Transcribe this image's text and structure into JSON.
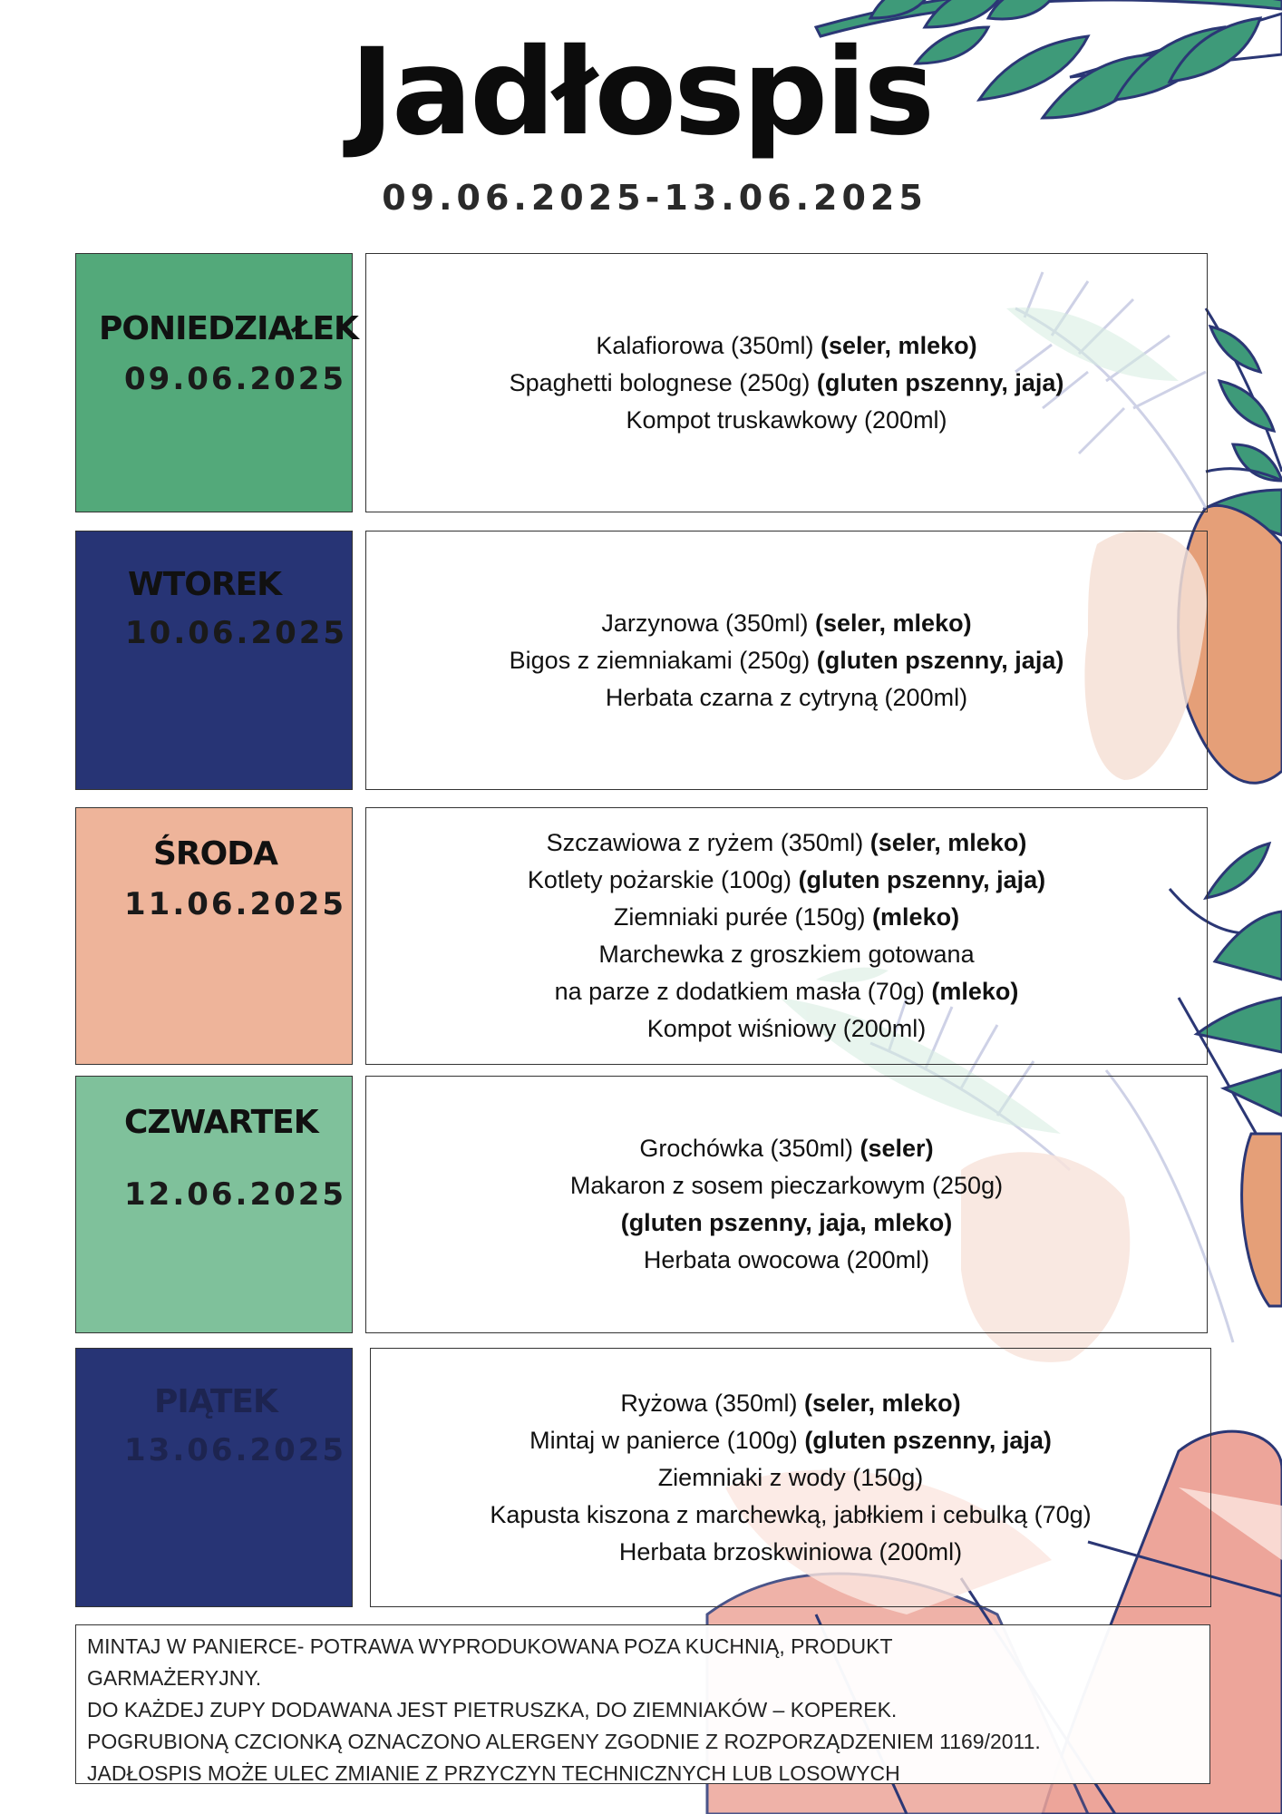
{
  "title": "Jadłospis",
  "date_range": "09.06.2025-13.06.2025",
  "colors": {
    "green": "#53a97a",
    "navy": "#273475",
    "peach": "#eeb49a",
    "light_green": "#7fc19b",
    "leaf_teal": "#3e9a79",
    "leaf_navy": "#2b3775",
    "leaf_orange": "#e59f78",
    "leaf_pink": "#eda59a"
  },
  "days": [
    {
      "name": "PONIEDZIAŁEK",
      "date": "09.06.2025",
      "menu": [
        {
          "text": "Kalafiorowa (350ml) ",
          "allergens": "(seler, mleko)"
        },
        {
          "text": "Spaghetti bolognese (250g) ",
          "allergens": "(gluten pszenny, jaja)"
        },
        {
          "text": "Kompot truskawkowy (200ml)",
          "allergens": ""
        }
      ]
    },
    {
      "name": "WTOREK",
      "date": "10.06.2025",
      "menu": [
        {
          "text": "Jarzynowa (350ml) ",
          "allergens": "(seler, mleko)"
        },
        {
          "text": "Bigos z ziemniakami (250g) ",
          "allergens": "(gluten pszenny, jaja)"
        },
        {
          "text": "Herbata czarna z cytryną (200ml)",
          "allergens": ""
        }
      ]
    },
    {
      "name": "ŚRODA",
      "date": "11.06.2025",
      "menu": [
        {
          "text": "Szczawiowa z ryżem (350ml) ",
          "allergens": "(seler, mleko)"
        },
        {
          "text": "Kotlety pożarskie (100g) ",
          "allergens": "(gluten pszenny, jaja)"
        },
        {
          "text": "Ziemniaki purée (150g) ",
          "allergens": "(mleko)"
        },
        {
          "text": "Marchewka z groszkiem gotowana",
          "allergens": ""
        },
        {
          "text": "na parze z dodatkiem masła (70g) ",
          "allergens": "(mleko)"
        },
        {
          "text": "Kompot wiśniowy (200ml)",
          "allergens": ""
        }
      ]
    },
    {
      "name": "CZWARTEK",
      "date": "12.06.2025",
      "menu": [
        {
          "text": "Grochówka (350ml) ",
          "allergens": "(seler)"
        },
        {
          "text": "Makaron z sosem pieczarkowym (250g)",
          "allergens": ""
        },
        {
          "text": "",
          "allergens": "(gluten pszenny, jaja, mleko)"
        },
        {
          "text": "Herbata owocowa (200ml)",
          "allergens": ""
        }
      ]
    },
    {
      "name": "PIĄTEK",
      "date": "13.06.2025",
      "menu": [
        {
          "text": "Ryżowa (350ml) ",
          "allergens": "(seler, mleko)"
        },
        {
          "text": "Mintaj w panierce (100g) ",
          "allergens": "(gluten pszenny, jaja)"
        },
        {
          "text": "Ziemniaki z wody (150g)",
          "allergens": ""
        },
        {
          "text": "Kapusta kiszona z marchewką, jabłkiem i cebulką (70g)",
          "allergens": ""
        },
        {
          "text": "Herbata brzoskwiniowa (200ml)",
          "allergens": ""
        }
      ]
    }
  ],
  "notes": [
    "MINTAJ W PANIERCE- POTRAWA WYPRODUKOWANA POZA KUCHNIĄ, PRODUKT",
    "GARMAŻERYJNY.",
    "DO KAŻDEJ ZUPY DODAWANA JEST PIETRUSZKA, DO ZIEMNIAKÓW – KOPEREK.",
    "POGRUBIONĄ CZCIONKĄ OZNACZONO ALERGENY ZGODNIE Z ROZPORZĄDZENIEM 1169/2011.",
    "JADŁOSPIS MOŻE ULEC ZMIANIE Z PRZYCZYN TECHNICZNYCH LUB LOSOWYCH"
  ]
}
